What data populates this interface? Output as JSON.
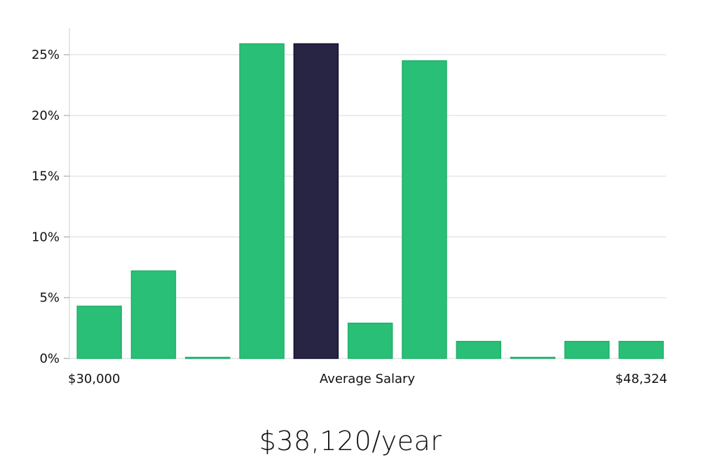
{
  "chart_data": {
    "type": "bar",
    "title": "",
    "xlabel": "Average Salary",
    "ylabel": "",
    "x_range_labels": {
      "start": "$30,000",
      "end": "$48,324"
    },
    "y_ticks": [
      {
        "value": 0,
        "label": "0%"
      },
      {
        "value": 5,
        "label": "5%"
      },
      {
        "value": 10,
        "label": "10%"
      },
      {
        "value": 15,
        "label": "15%"
      },
      {
        "value": 20,
        "label": "20%"
      },
      {
        "value": 25,
        "label": "25%"
      }
    ],
    "ylim": [
      0,
      27.2
    ],
    "grid": true,
    "values": [
      4.3,
      7.2,
      0,
      25.9,
      25.9,
      2.9,
      24.5,
      1.4,
      0,
      1.4,
      1.4
    ],
    "highlight_index": 4,
    "colors": {
      "bar": "#2abf76",
      "highlight": "#272543",
      "highlight_stroke": "#141230",
      "grid": "#d9d9d9",
      "axis": "#cccccc"
    }
  },
  "summary": {
    "salary_text": "$38,120/year"
  }
}
